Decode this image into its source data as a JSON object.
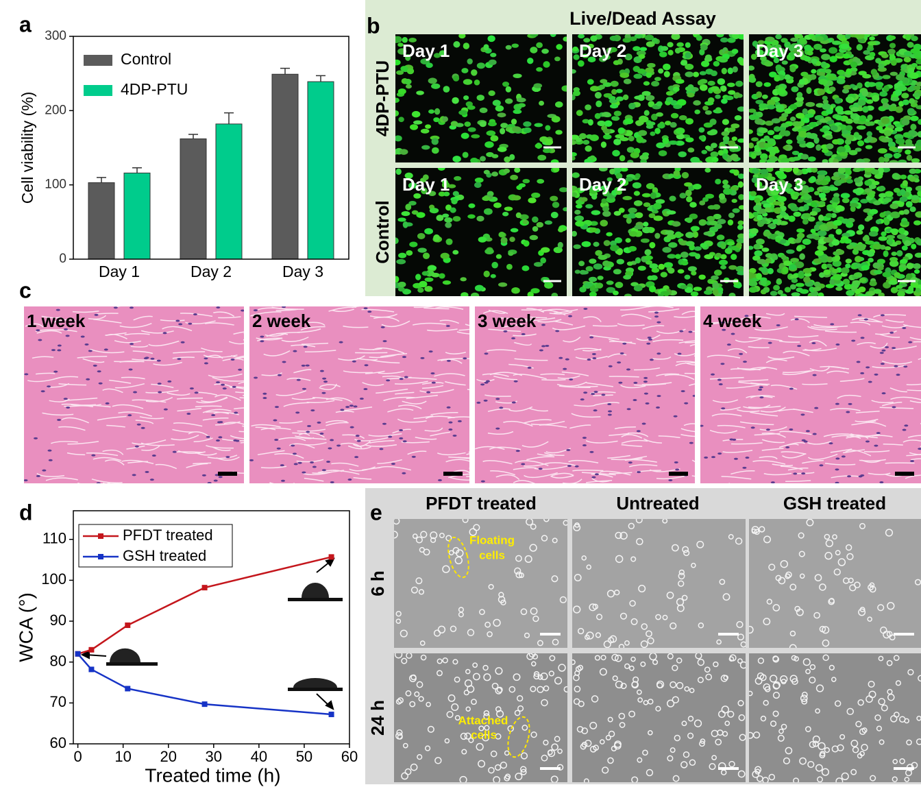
{
  "panels": {
    "a": "a",
    "b": "b",
    "c": "c",
    "d": "d",
    "e": "e"
  },
  "chart_data": [
    {
      "type": "bar",
      "ylabel": "Cell viability (%)",
      "categories": [
        "Day 1",
        "Day 2",
        "Day 3"
      ],
      "series": [
        {
          "name": "Control",
          "color": "#5b5b5b",
          "values": [
            103,
            162,
            249
          ],
          "errors": [
            7,
            6,
            8
          ]
        },
        {
          "name": "4DP-PTU",
          "color": "#00cc8c",
          "values": [
            116,
            182,
            239
          ],
          "errors": [
            7,
            15,
            8
          ]
        }
      ],
      "ylim": [
        0,
        300
      ],
      "yticks": [
        0,
        100,
        200,
        300
      ],
      "legend": "top-left"
    },
    {
      "type": "line",
      "xlabel": "Treated time (h)",
      "ylabel": "WCA (°)",
      "x": [
        0,
        3,
        11,
        28,
        56
      ],
      "series": [
        {
          "name": "PFDT treated",
          "color": "#c4161c",
          "values": [
            82,
            83,
            89,
            98.2,
            105.7
          ]
        },
        {
          "name": "GSH treated",
          "color": "#1633c6",
          "values": [
            82,
            78.2,
            73.5,
            69.7,
            67.2
          ]
        }
      ],
      "xlim": [
        -1,
        60
      ],
      "xticks": [
        0,
        10,
        20,
        30,
        40,
        50,
        60
      ],
      "ylim": [
        60,
        117
      ],
      "yticks": [
        60,
        70,
        80,
        90,
        100,
        110
      ],
      "legend": "top-left"
    }
  ],
  "live_dead": {
    "title_parts": [
      {
        "text": "Live",
        "color": "#3e8a2a"
      },
      {
        "text": "/",
        "color": "#111111"
      },
      {
        "text": "Dead",
        "color": "#c81010"
      },
      {
        "text": " Assay",
        "color": "#111111"
      }
    ],
    "rows": [
      "4DP-PTU",
      "Control"
    ],
    "tiles": [
      "Day 1",
      "Day 2",
      "Day 3"
    ]
  },
  "histology": {
    "tiles": [
      "1 week",
      "2 week",
      "3 week",
      "4 week"
    ]
  },
  "adhesion": {
    "columns": [
      "PFDT treated",
      "Untreated",
      "GSH treated"
    ],
    "rows": [
      "6 h",
      "24 h"
    ],
    "annotations": [
      [
        "Floating",
        "cells"
      ],
      [
        "Attached",
        "cells"
      ]
    ]
  }
}
